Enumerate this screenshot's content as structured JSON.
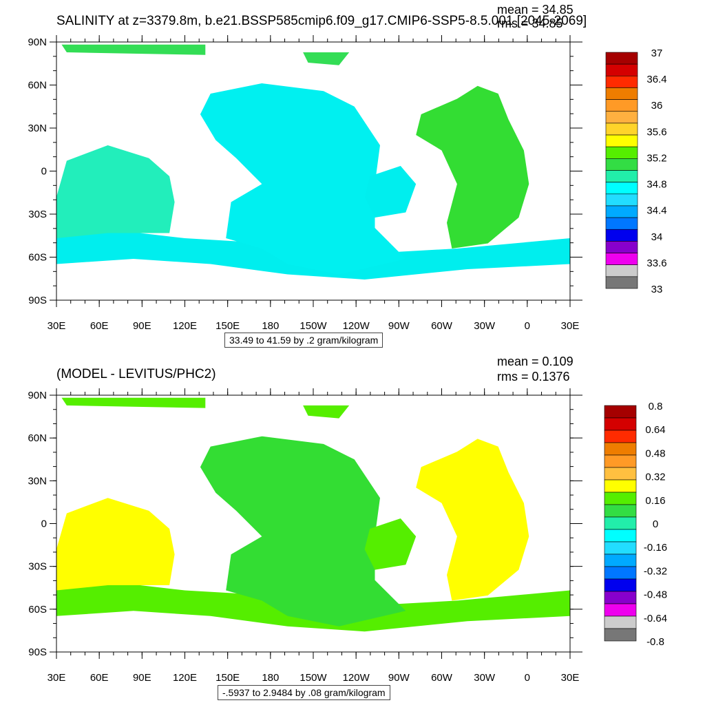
{
  "chart_data": [
    {
      "type": "heatmap",
      "title": "SALINITY at z=3379.8m, b.e21.BSSP585cmip6.f09_g17.CMIP6-SSP5-8.5.001 [2045-2069]",
      "mean_text": "mean = 34.85",
      "rms_text": "rms = 34.85",
      "info_text": "33.49 to 41.59 by .2 gram/kilogram",
      "x_ticks": [
        "30E",
        "60E",
        "90E",
        "120E",
        "150E",
        "180",
        "150W",
        "120W",
        "90W",
        "60W",
        "30W",
        "0",
        "30E"
      ],
      "y_ticks": [
        "90N",
        "60N",
        "30N",
        "0",
        "30S",
        "60S",
        "90S"
      ],
      "colorbar_labels": [
        "37",
        "36.4",
        "36",
        "35.6",
        "35.2",
        "34.8",
        "34.4",
        "34",
        "33.6",
        "33"
      ],
      "colorbar_colors": [
        "#a50000",
        "#d40000",
        "#ff2b00",
        "#ee7d00",
        "#ff9a26",
        "#ffb040",
        "#ffd42a",
        "#ffff00",
        "#55ee00",
        "#33dd44",
        "#22eeaa",
        "#00ffff",
        "#22ddff",
        "#00aaff",
        "#0077ff",
        "#0000ee",
        "#8800cc",
        "#ee00ee",
        "#cccccc",
        "#777777"
      ],
      "fill_color": "#00f0f0",
      "atlantic_color": "#33dd33"
    },
    {
      "type": "heatmap",
      "title": "(MODEL - LEVITUS/PHC2)",
      "mean_text": "mean = 0.109",
      "rms_text": "rms = 0.1376",
      "info_text": "-.5937 to 2.9484 by .08 gram/kilogram",
      "x_ticks": [
        "30E",
        "60E",
        "90E",
        "120E",
        "150E",
        "180",
        "150W",
        "120W",
        "90W",
        "60W",
        "30W",
        "0",
        "30E"
      ],
      "y_ticks": [
        "90N",
        "60N",
        "30N",
        "0",
        "30S",
        "60S",
        "90S"
      ],
      "colorbar_labels": [
        "0.8",
        "0.64",
        "0.48",
        "0.32",
        "0.16",
        "0",
        "-0.16",
        "-0.32",
        "-0.48",
        "-0.64",
        "-0.8"
      ],
      "colorbar_colors": [
        "#a50000",
        "#d40000",
        "#ff2b00",
        "#ee7d00",
        "#ff9a26",
        "#ffc040",
        "#ffff00",
        "#55ee00",
        "#33dd44",
        "#22eeaa",
        "#00ffff",
        "#22ddff",
        "#00aaff",
        "#0077ff",
        "#0000ee",
        "#8800cc",
        "#ee00ee",
        "#cccccc",
        "#777777"
      ],
      "fill_color": "#33dd33",
      "atlantic_color": "#ffff00"
    }
  ]
}
